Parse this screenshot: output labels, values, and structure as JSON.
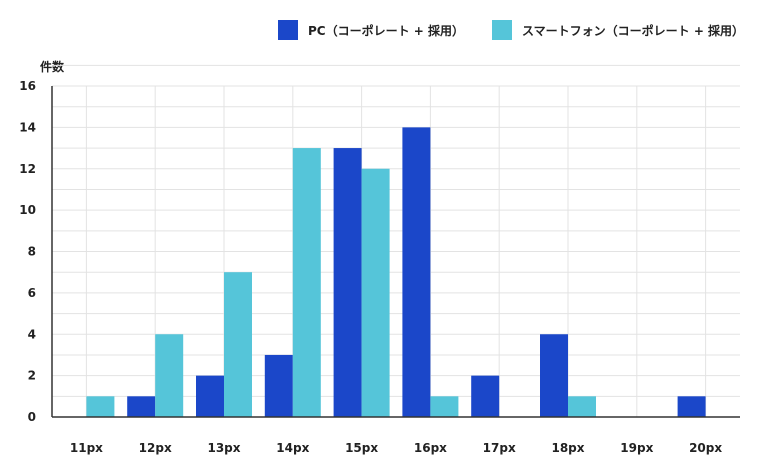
{
  "chart_data": {
    "type": "bar",
    "ylabel": "件数",
    "xlabel": "",
    "title": "",
    "categories": [
      "11px",
      "12px",
      "13px",
      "14px",
      "15px",
      "16px",
      "17px",
      "18px",
      "19px",
      "20px"
    ],
    "ylim": [
      0,
      16
    ],
    "yticks": [
      0,
      2,
      4,
      6,
      8,
      10,
      12,
      14,
      16
    ],
    "grid": true,
    "legend_position": "top-right",
    "series": [
      {
        "name": "PC（コーポレート + 採用）",
        "color": "#1b47c9",
        "values": [
          0,
          1,
          2,
          3,
          13,
          14,
          2,
          4,
          0,
          1
        ]
      },
      {
        "name": "スマートフォン（コーポレート + 採用）",
        "color": "#55c5d9",
        "values": [
          1,
          4,
          7,
          13,
          12,
          1,
          0,
          1,
          0,
          0
        ]
      }
    ]
  }
}
